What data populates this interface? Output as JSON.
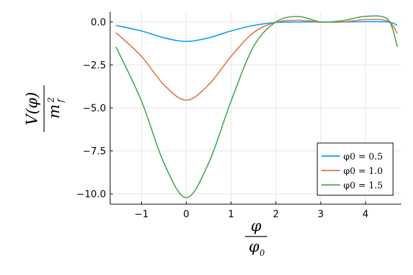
{
  "chart_data": {
    "type": "line",
    "title": "",
    "xlabel": "φ / φ0",
    "ylabel": "V(φ) / m_f^2",
    "xlim": [
      -1.7,
      4.8
    ],
    "ylim": [
      -10.6,
      0.6
    ],
    "x_ticks": [
      -1,
      0,
      1,
      2,
      3,
      4
    ],
    "x_tick_labels": [
      "−1",
      "0",
      "1",
      "2",
      "3",
      "4"
    ],
    "y_ticks": [
      0,
      -2.5,
      -5,
      -7.5,
      -10
    ],
    "y_tick_labels": [
      "0.0",
      "−2.5",
      "−5.0",
      "−7.5",
      "−10.0"
    ],
    "grid": true,
    "legend_position": "bottom-right",
    "x": [
      -1.571,
      -1.0,
      -0.5,
      0.0,
      0.5,
      1.0,
      1.5,
      2.0,
      2.5,
      3.0,
      3.5,
      4.0,
      4.5,
      4.712
    ],
    "series": [
      {
        "name": "φ0 = 0.5",
        "color": "#009AFA",
        "values": [
          -0.2,
          -0.52,
          -0.92,
          -1.13,
          -0.92,
          -0.52,
          -0.2,
          -0.03,
          0.0,
          0.0,
          0.0,
          0.02,
          0.0,
          -0.18
        ]
      },
      {
        "name": "φ0 = 1.0",
        "color": "#E36F47",
        "values": [
          -0.62,
          -2.0,
          -3.65,
          -4.55,
          -3.65,
          -2.0,
          -0.62,
          -0.02,
          0.1,
          0.0,
          0.0,
          0.14,
          0.05,
          -0.66
        ]
      },
      {
        "name": "φ0 = 1.5",
        "color": "#3EA44E",
        "values": [
          -1.44,
          -4.6,
          -8.2,
          -10.22,
          -8.2,
          -4.6,
          -1.44,
          0.0,
          0.32,
          0.0,
          0.08,
          0.33,
          0.15,
          -1.44
        ]
      }
    ]
  }
}
